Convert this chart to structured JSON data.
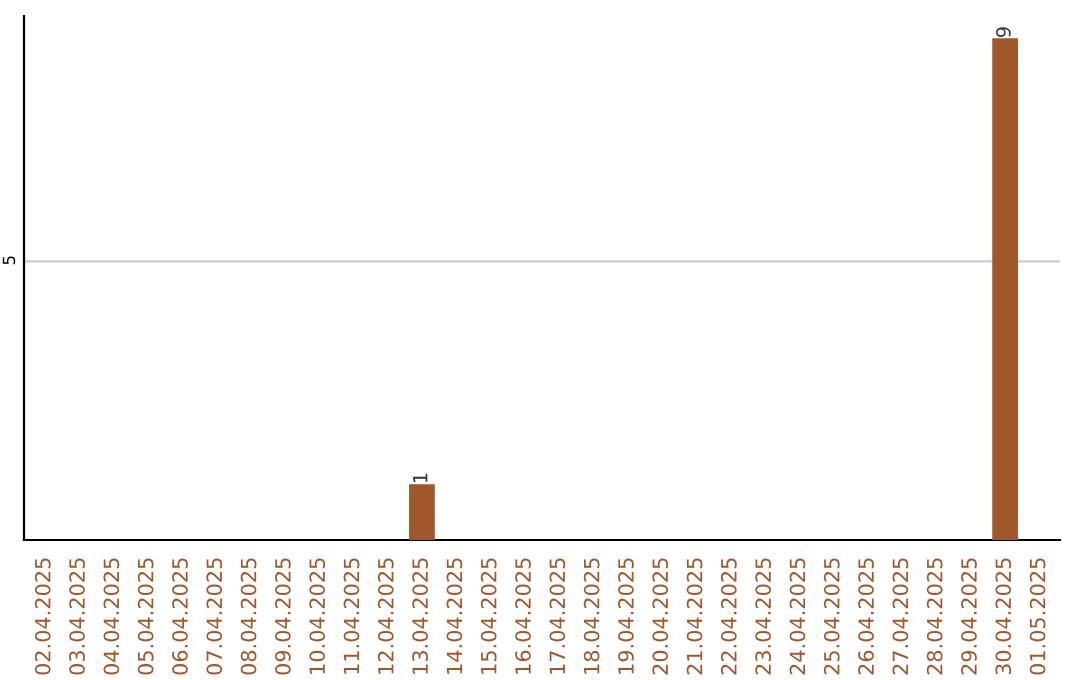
{
  "chart_data": {
    "type": "bar",
    "categories": [
      "02.04.2025",
      "03.04.2025",
      "04.04.2025",
      "05.04.2025",
      "06.04.2025",
      "07.04.2025",
      "08.04.2025",
      "09.04.2025",
      "10.04.2025",
      "11.04.2025",
      "12.04.2025",
      "13.04.2025",
      "14.04.2025",
      "15.04.2025",
      "16.04.2025",
      "17.04.2025",
      "18.04.2025",
      "19.04.2025",
      "20.04.2025",
      "21.04.2025",
      "22.04.2025",
      "23.04.2025",
      "24.04.2025",
      "25.04.2025",
      "26.04.2025",
      "27.04.2025",
      "28.04.2025",
      "29.04.2025",
      "30.04.2025",
      "01.05.2025"
    ],
    "values": [
      0,
      0,
      0,
      0,
      0,
      0,
      0,
      0,
      0,
      0,
      0,
      1,
      0,
      0,
      0,
      0,
      0,
      0,
      0,
      0,
      0,
      0,
      0,
      0,
      0,
      0,
      0,
      0,
      9,
      0
    ],
    "color": "#a0572b",
    "value_labels": [
      null,
      null,
      null,
      null,
      null,
      null,
      null,
      null,
      null,
      null,
      null,
      "1",
      null,
      null,
      null,
      null,
      null,
      null,
      null,
      null,
      null,
      null,
      null,
      null,
      null,
      null,
      null,
      null,
      "9",
      null
    ],
    "ylim": [
      0,
      9.4
    ],
    "yticks": [
      5
    ],
    "grid": "y"
  }
}
